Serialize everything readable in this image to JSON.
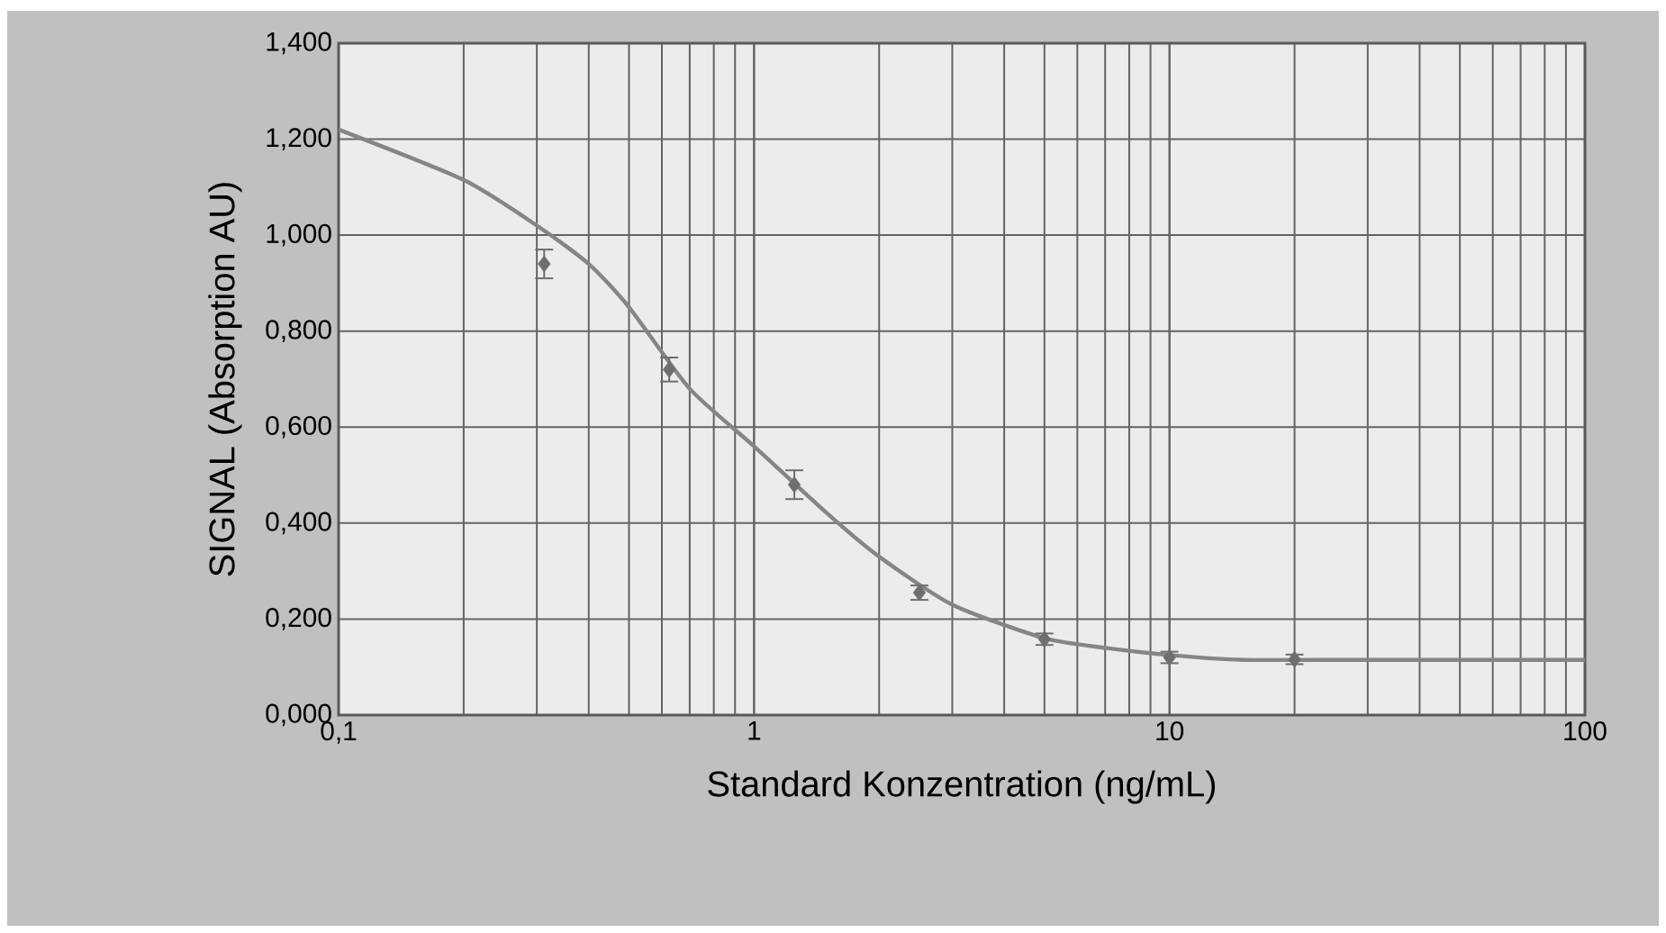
{
  "chart_data": {
    "type": "scatter",
    "xlabel": "Standard Konzentration (ng/mL)",
    "ylabel": "SIGNAL (Absorption AU)",
    "log": "x",
    "grid": true,
    "xlim": [
      0.1,
      100
    ],
    "ylim": [
      0,
      1.4
    ],
    "xticks": [
      {
        "value": 0.1,
        "label": "0,1"
      },
      1,
      10,
      100
    ],
    "yticks": [
      {
        "value": 0,
        "label": "0,000"
      },
      {
        "value": 0.2,
        "label": "0,200"
      },
      {
        "value": 0.4,
        "label": "0,400"
      },
      {
        "value": 0.6,
        "label": "0,600"
      },
      {
        "value": 0.8,
        "label": "0,800"
      },
      {
        "value": 1.0,
        "label": "1,000"
      },
      {
        "value": 1.2,
        "label": "1,200"
      },
      {
        "value": 1.4,
        "label": "1,400"
      }
    ],
    "series": [
      {
        "type": "line",
        "color": "#858585",
        "marker": "none",
        "x": [
          0.1,
          0.2,
          0.3,
          0.4,
          0.5,
          0.7,
          1,
          1.5,
          2,
          3,
          5,
          7,
          10,
          15,
          30,
          100
        ],
        "values": [
          1.22,
          1.115,
          1.02,
          0.94,
          0.85,
          0.68,
          0.56,
          0.42,
          0.33,
          0.23,
          0.16,
          0.14,
          0.125,
          0.115,
          0.115,
          0.115
        ]
      },
      {
        "type": "scatter",
        "color": "#6e6e6e",
        "marker": "diamond",
        "x": [
          0.3125,
          0.625,
          1.25,
          2.5,
          5,
          10,
          20
        ],
        "values": [
          0.94,
          0.72,
          0.48,
          0.255,
          0.158,
          0.12,
          0.116
        ],
        "errors": [
          0.03,
          0.025,
          0.03,
          0.015,
          0.012,
          0.012,
          0.01
        ]
      }
    ]
  }
}
